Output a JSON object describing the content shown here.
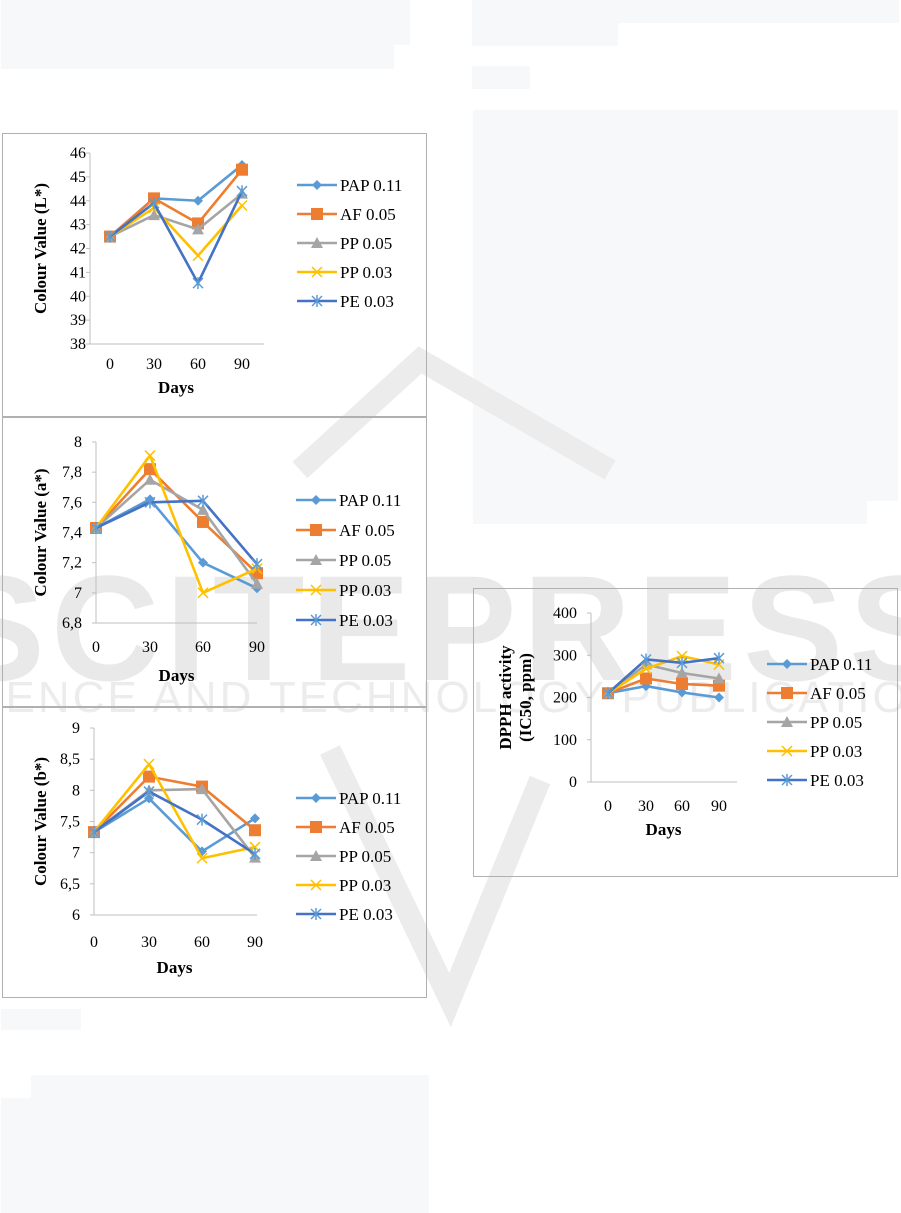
{
  "watermark": {
    "main": "SCITEPRESS",
    "sub": "SCIENCE AND TECHNOLOGY PUBLICATIONS"
  },
  "series_styles": [
    {
      "name": "PAP 0.11",
      "color": "#5B9BD5",
      "marker": "diamond"
    },
    {
      "name": "AF 0.05",
      "color": "#ED7D31",
      "marker": "square"
    },
    {
      "name": "PP 0.05",
      "color": "#A5A5A5",
      "marker": "triangle"
    },
    {
      "name": "PP 0.03",
      "color": "#FFC000",
      "marker": "x"
    },
    {
      "name": "PE 0.03",
      "color": "#4472C4",
      "marker": "star"
    }
  ],
  "chart_data": [
    {
      "id": "lstar",
      "type": "line",
      "title": "",
      "xlabel": "Days",
      "ylabel": "Colour Value (L*)",
      "x": [
        0,
        30,
        60,
        90
      ],
      "xticks": [
        "0",
        "30",
        "60",
        "90"
      ],
      "ylim": [
        38,
        46
      ],
      "yticks": [
        "38",
        "39",
        "40",
        "41",
        "42",
        "43",
        "44",
        "45",
        "46"
      ],
      "legend": "right",
      "series": [
        {
          "name": "PAP 0.11",
          "values": [
            42.5,
            44.1,
            44.0,
            45.5
          ]
        },
        {
          "name": "AF 0.05",
          "values": [
            42.5,
            44.1,
            43.05,
            45.3
          ]
        },
        {
          "name": "PP 0.05",
          "values": [
            42.5,
            43.4,
            42.8,
            44.3
          ]
        },
        {
          "name": "PP 0.03",
          "values": [
            42.5,
            43.7,
            41.7,
            43.8
          ]
        },
        {
          "name": "PE 0.03",
          "values": [
            42.5,
            43.9,
            40.55,
            44.4
          ]
        }
      ]
    },
    {
      "id": "astar",
      "type": "line",
      "title": "",
      "xlabel": "Days",
      "ylabel": "Colour Value (a*)",
      "x": [
        0,
        30,
        60,
        90
      ],
      "xticks": [
        "0",
        "30",
        "60",
        "90"
      ],
      "ylim": [
        6.8,
        8
      ],
      "yticks": [
        "6,8",
        "7",
        "7,2",
        "7,4",
        "7,6",
        "7,8",
        "8"
      ],
      "legend": "right",
      "series": [
        {
          "name": "PAP 0.11",
          "values": [
            7.43,
            7.62,
            7.2,
            7.03
          ]
        },
        {
          "name": "AF 0.05",
          "values": [
            7.43,
            7.82,
            7.47,
            7.13
          ]
        },
        {
          "name": "PP 0.05",
          "values": [
            7.43,
            7.75,
            7.55,
            7.06
          ]
        },
        {
          "name": "PP 0.03",
          "values": [
            7.43,
            7.91,
            7.0,
            7.16
          ]
        },
        {
          "name": "PE 0.03",
          "values": [
            7.43,
            7.6,
            7.61,
            7.19
          ]
        }
      ]
    },
    {
      "id": "bstar",
      "type": "line",
      "title": "",
      "xlabel": "Days",
      "ylabel": "Colour Value (b*)",
      "x": [
        0,
        30,
        60,
        90
      ],
      "xticks": [
        "0",
        "30",
        "60",
        "90"
      ],
      "ylim": [
        6,
        9
      ],
      "yticks": [
        "6",
        "6,5",
        "7",
        "7,5",
        "8",
        "8,5",
        "9"
      ],
      "legend": "right",
      "series": [
        {
          "name": "PAP 0.11",
          "values": [
            7.33,
            7.87,
            7.02,
            7.55
          ]
        },
        {
          "name": "AF 0.05",
          "values": [
            7.33,
            8.22,
            8.06,
            7.36
          ]
        },
        {
          "name": "PP 0.05",
          "values": [
            7.33,
            8.0,
            8.02,
            6.92
          ]
        },
        {
          "name": "PP 0.03",
          "values": [
            7.33,
            8.42,
            6.91,
            7.09
          ]
        },
        {
          "name": "PE 0.03",
          "values": [
            7.33,
            7.98,
            7.53,
            6.98
          ]
        }
      ]
    },
    {
      "id": "dpph",
      "type": "line",
      "title": "",
      "xlabel": "Days",
      "ylabel_line1": "DPPH activity",
      "ylabel_line2": "(IC50, ppm)",
      "x": [
        0,
        30,
        60,
        90
      ],
      "xticks": [
        "0",
        "30",
        "60",
        "90"
      ],
      "ylim": [
        0,
        400
      ],
      "yticks": [
        "0",
        "100",
        "200",
        "300",
        "400"
      ],
      "legend": "right",
      "series": [
        {
          "name": "PAP 0.11",
          "values": [
            210,
            227,
            212,
            200
          ]
        },
        {
          "name": "AF 0.05",
          "values": [
            210,
            245,
            232,
            228
          ]
        },
        {
          "name": "PP 0.05",
          "values": [
            210,
            278,
            258,
            245
          ]
        },
        {
          "name": "PP 0.03",
          "values": [
            210,
            268,
            298,
            278
          ]
        },
        {
          "name": "PE 0.03",
          "values": [
            210,
            290,
            282,
            293
          ]
        }
      ]
    }
  ]
}
